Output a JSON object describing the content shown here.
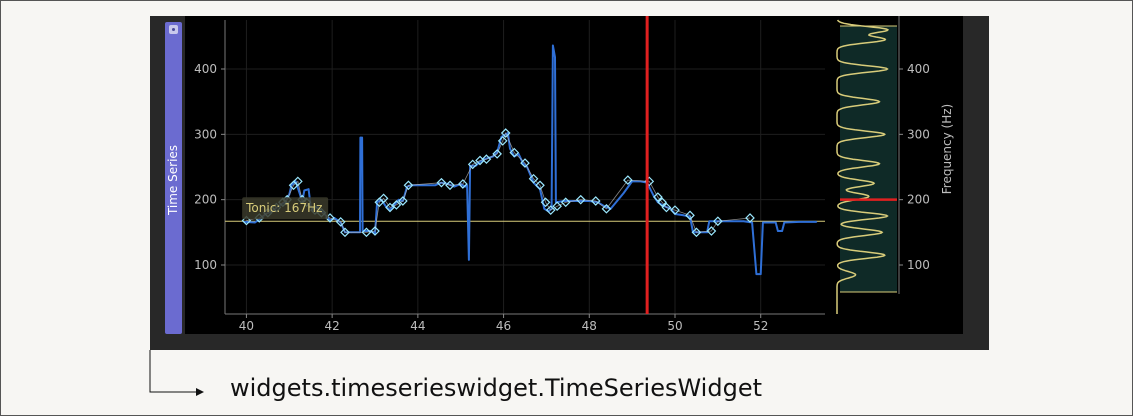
{
  "caption": "widgets.timeserieswidget.TimeSeriesWidget",
  "side_tab": {
    "label": "Time Series"
  },
  "tooltip": {
    "text": "Tonic: 167Hz"
  },
  "colors": {
    "series": "#2f6fd6",
    "marker": "#9be8ff",
    "cursor": "#e02020",
    "tonic_line": "#d8cc7a",
    "histogram": "#d8cc7a",
    "histogram_bg": "#0f2a27",
    "tab": "#6b6bd0"
  },
  "main_plot": {
    "x_ticks": [
      "40",
      "42",
      "44",
      "46",
      "48",
      "50",
      "52"
    ],
    "y_ticks": [
      "100",
      "200",
      "300",
      "400"
    ],
    "xlim": [
      39.5,
      53.5
    ],
    "ylim": [
      25,
      475
    ],
    "cursor_x": 49.35,
    "tonic_hz": 167
  },
  "side_plot": {
    "ylabel": "Frequency (Hz)",
    "y_ticks": [
      "100",
      "200",
      "300",
      "400"
    ]
  },
  "chart_data": {
    "type": "line",
    "xlim": [
      39.5,
      53.5
    ],
    "ylim": [
      25,
      475
    ],
    "series": [
      {
        "values_xy": [
          [
            39.95,
            166
          ],
          [
            40.2,
            165
          ],
          [
            40.3,
            170
          ],
          [
            40.45,
            178
          ],
          [
            40.6,
            182
          ],
          [
            40.75,
            190
          ],
          [
            40.9,
            196
          ],
          [
            41.0,
            208
          ],
          [
            41.05,
            222
          ],
          [
            41.15,
            228
          ],
          [
            41.25,
            208
          ],
          [
            41.3,
            196
          ],
          [
            41.35,
            214
          ],
          [
            41.45,
            216
          ],
          [
            41.5,
            190
          ],
          [
            41.55,
            184
          ],
          [
            41.65,
            190
          ],
          [
            41.75,
            182
          ],
          [
            41.85,
            176
          ],
          [
            41.95,
            168
          ],
          [
            42.05,
            172
          ],
          [
            42.2,
            165
          ],
          [
            42.3,
            150
          ],
          [
            42.45,
            150
          ],
          [
            42.6,
            150
          ],
          [
            42.65,
            150
          ],
          [
            42.66,
            295
          ],
          [
            42.7,
            295
          ],
          [
            42.71,
            152
          ],
          [
            42.9,
            152
          ],
          [
            43.0,
            148
          ],
          [
            43.05,
            196
          ],
          [
            43.15,
            200
          ],
          [
            43.25,
            190
          ],
          [
            43.35,
            184
          ],
          [
            43.45,
            192
          ],
          [
            43.55,
            200
          ],
          [
            43.65,
            198
          ],
          [
            43.75,
            220
          ],
          [
            43.85,
            222
          ],
          [
            44.1,
            222
          ],
          [
            44.4,
            222
          ],
          [
            44.55,
            226
          ],
          [
            44.7,
            224
          ],
          [
            44.85,
            220
          ],
          [
            45.0,
            224
          ],
          [
            45.1,
            220
          ],
          [
            45.15,
            222
          ],
          [
            45.19,
            108
          ],
          [
            45.22,
            252
          ],
          [
            45.35,
            252
          ],
          [
            45.45,
            258
          ],
          [
            45.55,
            262
          ],
          [
            45.75,
            266
          ],
          [
            45.85,
            272
          ],
          [
            45.95,
            296
          ],
          [
            46.1,
            302
          ],
          [
            46.15,
            278
          ],
          [
            46.25,
            266
          ],
          [
            46.35,
            270
          ],
          [
            46.45,
            256
          ],
          [
            46.55,
            250
          ],
          [
            46.7,
            226
          ],
          [
            46.85,
            216
          ],
          [
            46.95,
            186
          ],
          [
            47.05,
            182
          ],
          [
            47.12,
            186
          ],
          [
            47.15,
            436
          ],
          [
            47.2,
            418
          ],
          [
            47.22,
            196
          ],
          [
            47.4,
            198
          ],
          [
            47.8,
            198
          ],
          [
            48.0,
            198
          ],
          [
            48.2,
            196
          ],
          [
            48.35,
            190
          ],
          [
            48.5,
            186
          ],
          [
            48.65,
            198
          ],
          [
            48.8,
            210
          ],
          [
            49.0,
            228
          ],
          [
            49.2,
            228
          ],
          [
            49.35,
            226
          ],
          [
            49.5,
            206
          ],
          [
            49.6,
            196
          ],
          [
            49.75,
            190
          ],
          [
            49.9,
            186
          ],
          [
            50.0,
            178
          ],
          [
            50.2,
            176
          ],
          [
            50.35,
            174
          ],
          [
            50.42,
            150
          ],
          [
            50.5,
            150
          ],
          [
            50.75,
            150
          ],
          [
            50.8,
            167
          ],
          [
            51.0,
            167
          ],
          [
            51.3,
            167
          ],
          [
            51.6,
            167
          ],
          [
            51.8,
            165
          ],
          [
            51.9,
            86
          ],
          [
            52.0,
            86
          ],
          [
            52.05,
            165
          ],
          [
            52.35,
            165
          ],
          [
            52.4,
            152
          ],
          [
            52.5,
            152
          ],
          [
            52.55,
            165
          ],
          [
            52.9,
            166
          ],
          [
            53.3,
            166
          ]
        ]
      }
    ],
    "markers_xy": [
      [
        40.0,
        168
      ],
      [
        40.3,
        172
      ],
      [
        40.5,
        180
      ],
      [
        40.7,
        188
      ],
      [
        40.85,
        196
      ],
      [
        40.95,
        200
      ],
      [
        41.1,
        222
      ],
      [
        41.2,
        228
      ],
      [
        41.3,
        200
      ],
      [
        41.4,
        196
      ],
      [
        41.6,
        184
      ],
      [
        41.75,
        180
      ],
      [
        41.95,
        172
      ],
      [
        42.2,
        166
      ],
      [
        42.3,
        150
      ],
      [
        42.8,
        150
      ],
      [
        43.0,
        152
      ],
      [
        43.1,
        196
      ],
      [
        43.2,
        202
      ],
      [
        43.35,
        188
      ],
      [
        43.5,
        192
      ],
      [
        43.65,
        198
      ],
      [
        43.78,
        222
      ],
      [
        44.55,
        226
      ],
      [
        44.75,
        222
      ],
      [
        45.05,
        224
      ],
      [
        45.28,
        254
      ],
      [
        45.45,
        260
      ],
      [
        45.6,
        262
      ],
      [
        45.85,
        270
      ],
      [
        45.98,
        290
      ],
      [
        46.05,
        302
      ],
      [
        46.25,
        272
      ],
      [
        46.5,
        256
      ],
      [
        46.7,
        232
      ],
      [
        46.85,
        222
      ],
      [
        46.98,
        196
      ],
      [
        47.1,
        184
      ],
      [
        47.25,
        190
      ],
      [
        47.45,
        196
      ],
      [
        47.8,
        200
      ],
      [
        48.15,
        198
      ],
      [
        48.4,
        186
      ],
      [
        48.9,
        230
      ],
      [
        49.4,
        228
      ],
      [
        49.6,
        204
      ],
      [
        49.7,
        196
      ],
      [
        49.8,
        188
      ],
      [
        50.0,
        184
      ],
      [
        50.35,
        176
      ],
      [
        50.5,
        150
      ],
      [
        50.85,
        152
      ],
      [
        51.0,
        167
      ],
      [
        51.75,
        172
      ]
    ],
    "histogram_peaks_hz": [
      85,
      115,
      150,
      175,
      205,
      225,
      255,
      300,
      350,
      400,
      445,
      460
    ]
  }
}
